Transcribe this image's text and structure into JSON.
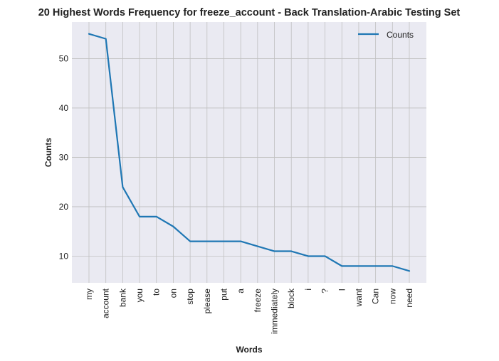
{
  "chart_data": {
    "type": "line",
    "title": "20 Highest Words Frequency for freeze_account - Back Translation-Arabic Testing Set",
    "xlabel": "Words",
    "ylabel": "Counts",
    "categories": [
      "my",
      "account",
      "bank",
      "you",
      "to",
      "on",
      "stop",
      "please",
      "put",
      "a",
      "freeze",
      "immediately",
      "block",
      "i",
      "?",
      "I",
      "want",
      "Can",
      "now",
      "need"
    ],
    "series": [
      {
        "name": "Counts",
        "values": [
          55,
          54,
          24,
          18,
          18,
          16,
          13,
          13,
          13,
          13,
          12,
          11,
          11,
          10,
          10,
          8,
          8,
          8,
          8,
          7
        ],
        "color": "#1f77b4"
      }
    ],
    "ylim": [
      4.6,
      57.4
    ],
    "yticks": [
      10,
      20,
      30,
      40,
      50
    ],
    "grid": true,
    "legend": "top-right",
    "background": "#eaeaf2",
    "grid_color": "#c0c0c0"
  }
}
